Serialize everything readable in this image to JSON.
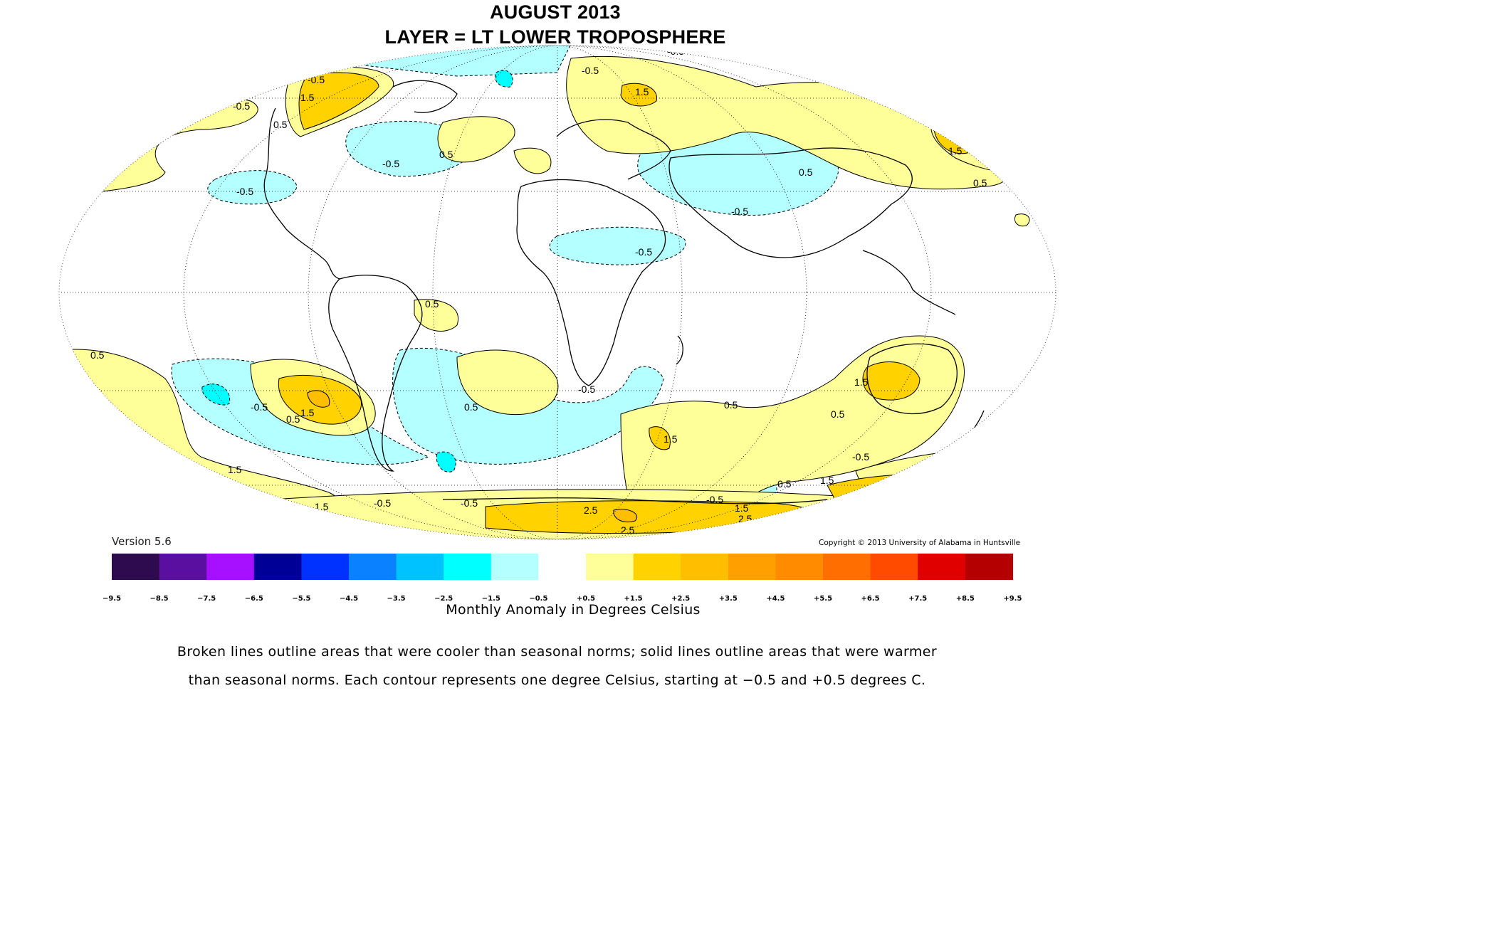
{
  "title_line1": "AUGUST 2013",
  "title_line2": "LAYER = LT LOWER TROPOSPHERE",
  "version": "Version 5.6",
  "copyright": "Copyright © 2013 University of Alabama in Huntsville",
  "colorbar": {
    "units_label": "Monthly Anomaly in Degrees Celsius",
    "cool_colors": [
      "#2e0a4e",
      "#5a0fa0",
      "#a60fff",
      "#000096",
      "#0032ff",
      "#0a82ff",
      "#00c2ff",
      "#00ffff",
      "#b4ffff"
    ],
    "warm_colors": [
      "#ffff9a",
      "#ffd200",
      "#ffbe00",
      "#ffa000",
      "#ff8c00",
      "#ff6e00",
      "#ff4b00",
      "#e10000",
      "#b40000"
    ],
    "neutral_color": "#ffffff",
    "tick_labels": [
      "−9.5",
      "−8.5",
      "−7.5",
      "−6.5",
      "−5.5",
      "−4.5",
      "−3.5",
      "−2.5",
      "−1.5",
      "−0.5",
      "+0.5",
      "+1.5",
      "+2.5",
      "+3.5",
      "+4.5",
      "+5.5",
      "+6.5",
      "+7.5",
      "+8.5",
      "+9.5"
    ]
  },
  "contour_labels": [
    "-0.5",
    "0.5",
    "1.5",
    "2.5"
  ],
  "note_line1": "Broken lines outline areas that were cooler than seasonal norms; solid lines outline areas that were warmer",
  "note_line2": "than seasonal norms. Each contour represents one degree Celsius, starting at −0.5 and +0.5 degrees C."
}
